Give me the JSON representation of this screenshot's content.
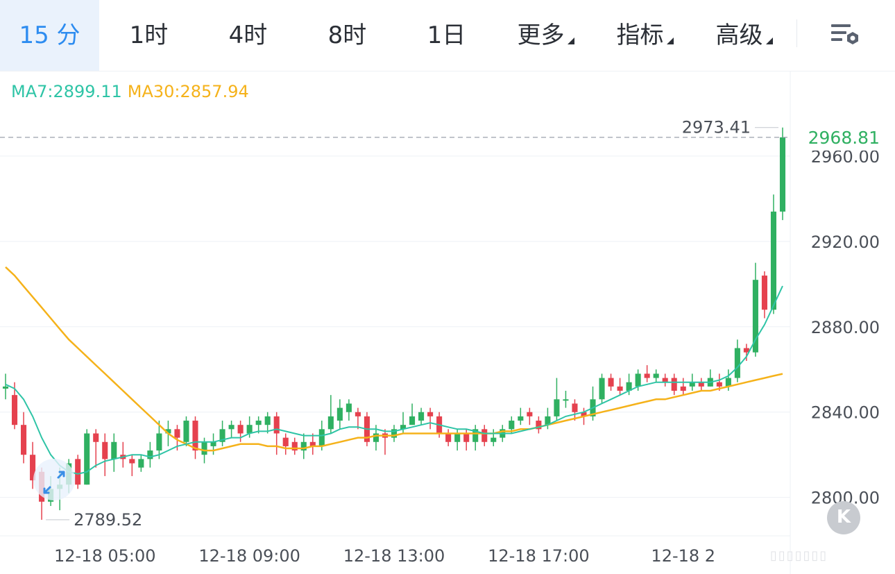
{
  "toolbar": {
    "tabs": [
      {
        "label": "15 分",
        "active": true
      },
      {
        "label": "1时"
      },
      {
        "label": "4时"
      },
      {
        "label": "8时"
      },
      {
        "label": "1日"
      },
      {
        "label": "更多",
        "dropdown": true
      },
      {
        "label": "指标",
        "dropdown": true
      },
      {
        "label": "高级",
        "dropdown": true
      }
    ],
    "settings_icon": "chart-settings-icon"
  },
  "legend": {
    "ma7": "MA7:2899.11",
    "ma30": "MA30:2857.94"
  },
  "colors": {
    "up": "#2fb061",
    "down": "#e5414e",
    "ma7": "#2ec4a6",
    "ma30": "#f5b21a",
    "grid": "#eef1f5",
    "active_tab": "#2d8cf0",
    "price_tag": "#2fb061"
  },
  "collapse_button": "K",
  "chart_data": {
    "type": "candlestick",
    "interval": "15 分",
    "ylim": [
      2782,
      3000
    ],
    "yticks": [
      2800,
      2840,
      2880,
      2920,
      2960
    ],
    "ytick_labels": [
      "2800.00",
      "2840.00",
      "2880.00",
      "2920.00",
      "2960.00"
    ],
    "xtick_labels": [
      "12-18 05:00",
      "12-18 09:00",
      "12-18 13:00",
      "12-18 17:00",
      "12-18 2"
    ],
    "xtick_index": [
      11,
      27,
      43,
      59,
      75
    ],
    "current_price": "2968.81",
    "high_marker": "2973.41",
    "low_marker": "2789.52",
    "candles": [
      [
        2851,
        2852,
        2858,
        2846
      ],
      [
        2848,
        2834,
        2854,
        2832
      ],
      [
        2834,
        2820,
        2840,
        2816
      ],
      [
        2820,
        2808,
        2826,
        2804
      ],
      [
        2812,
        2798,
        2814,
        2789.52
      ],
      [
        2798,
        2804,
        2810,
        2796
      ],
      [
        2804,
        2806,
        2814,
        2794
      ],
      [
        2806,
        2816,
        2818,
        2802
      ],
      [
        2818,
        2806,
        2820,
        2804
      ],
      [
        2806,
        2830,
        2832,
        2806
      ],
      [
        2830,
        2826,
        2832,
        2814
      ],
      [
        2826,
        2818,
        2830,
        2810
      ],
      [
        2818,
        2826,
        2830,
        2812
      ],
      [
        2820,
        2818,
        2826,
        2814
      ],
      [
        2818,
        2816,
        2820,
        2810
      ],
      [
        2814,
        2818,
        2820,
        2812
      ],
      [
        2818,
        2822,
        2826,
        2814
      ],
      [
        2822,
        2830,
        2836,
        2818
      ],
      [
        2830,
        2832,
        2836,
        2824
      ],
      [
        2832,
        2828,
        2834,
        2822
      ],
      [
        2826,
        2836,
        2838,
        2824
      ],
      [
        2836,
        2822,
        2838,
        2818
      ],
      [
        2820,
        2826,
        2828,
        2816
      ],
      [
        2824,
        2826,
        2830,
        2820
      ],
      [
        2826,
        2832,
        2836,
        2824
      ],
      [
        2832,
        2834,
        2836,
        2828
      ],
      [
        2834,
        2830,
        2836,
        2826
      ],
      [
        2830,
        2834,
        2838,
        2828
      ],
      [
        2834,
        2836,
        2838,
        2830
      ],
      [
        2834,
        2838,
        2840,
        2830
      ],
      [
        2838,
        2830,
        2840,
        2820
      ],
      [
        2828,
        2824,
        2830,
        2820
      ],
      [
        2826,
        2822,
        2828,
        2820
      ],
      [
        2822,
        2826,
        2830,
        2818
      ],
      [
        2826,
        2824,
        2830,
        2820
      ],
      [
        2824,
        2832,
        2836,
        2822
      ],
      [
        2832,
        2838,
        2848,
        2830
      ],
      [
        2836,
        2842,
        2846,
        2832
      ],
      [
        2840,
        2844,
        2846,
        2836
      ],
      [
        2840,
        2838,
        2842,
        2832
      ],
      [
        2838,
        2826,
        2840,
        2824
      ],
      [
        2826,
        2830,
        2834,
        2822
      ],
      [
        2830,
        2828,
        2832,
        2820
      ],
      [
        2828,
        2832,
        2834,
        2826
      ],
      [
        2832,
        2834,
        2840,
        2830
      ],
      [
        2834,
        2838,
        2844,
        2834
      ],
      [
        2836,
        2840,
        2842,
        2834
      ],
      [
        2840,
        2838,
        2842,
        2832
      ],
      [
        2838,
        2830,
        2840,
        2828
      ],
      [
        2830,
        2826,
        2832,
        2824
      ],
      [
        2826,
        2830,
        2832,
        2822
      ],
      [
        2830,
        2826,
        2832,
        2822
      ],
      [
        2826,
        2832,
        2834,
        2822
      ],
      [
        2832,
        2826,
        2834,
        2824
      ],
      [
        2826,
        2828,
        2832,
        2824
      ],
      [
        2828,
        2832,
        2834,
        2826
      ],
      [
        2832,
        2836,
        2838,
        2830
      ],
      [
        2836,
        2838,
        2842,
        2834
      ],
      [
        2840,
        2838,
        2842,
        2834
      ],
      [
        2836,
        2832,
        2838,
        2830
      ],
      [
        2834,
        2838,
        2842,
        2832
      ],
      [
        2838,
        2846,
        2856,
        2836
      ],
      [
        2846,
        2846,
        2850,
        2842
      ],
      [
        2844,
        2840,
        2846,
        2836
      ],
      [
        2840,
        2838,
        2842,
        2834
      ],
      [
        2838,
        2846,
        2852,
        2836
      ],
      [
        2846,
        2856,
        2858,
        2844
      ],
      [
        2856,
        2852,
        2858,
        2850
      ],
      [
        2852,
        2850,
        2856,
        2848
      ],
      [
        2850,
        2854,
        2858,
        2848
      ],
      [
        2852,
        2858,
        2860,
        2850
      ],
      [
        2858,
        2856,
        2862,
        2854
      ],
      [
        2856,
        2858,
        2860,
        2854
      ],
      [
        2856,
        2854,
        2858,
        2852
      ],
      [
        2856,
        2850,
        2858,
        2848
      ],
      [
        2852,
        2850,
        2856,
        2848
      ],
      [
        2852,
        2854,
        2858,
        2850
      ],
      [
        2854,
        2852,
        2856,
        2850
      ],
      [
        2852,
        2856,
        2860,
        2852
      ],
      [
        2854,
        2852,
        2858,
        2850
      ],
      [
        2852,
        2856,
        2860,
        2850
      ],
      [
        2856,
        2870,
        2874,
        2854
      ],
      [
        2870,
        2868,
        2872,
        2864
      ],
      [
        2868,
        2902,
        2910,
        2866
      ],
      [
        2904,
        2888,
        2906,
        2884
      ],
      [
        2888,
        2934,
        2942,
        2886
      ],
      [
        2934,
        2968.81,
        2973.41,
        2930
      ]
    ],
    "ma7": [
      2853,
      2851,
      2846,
      2838,
      2828,
      2820,
      2815,
      2812,
      2811,
      2812,
      2815,
      2817,
      2818,
      2819,
      2820,
      2820,
      2819,
      2820,
      2822,
      2824,
      2825,
      2826,
      2826,
      2826,
      2827,
      2828,
      2828,
      2830,
      2831,
      2831,
      2832,
      2831,
      2830,
      2829,
      2829,
      2829,
      2830,
      2832,
      2833,
      2833,
      2832,
      2832,
      2831,
      2831,
      2832,
      2833,
      2834,
      2835,
      2834,
      2833,
      2832,
      2832,
      2831,
      2830,
      2830,
      2830,
      2830,
      2831,
      2832,
      2833,
      2834,
      2836,
      2838,
      2839,
      2840,
      2842,
      2844,
      2846,
      2848,
      2850,
      2852,
      2853,
      2854,
      2854,
      2854,
      2854,
      2854,
      2854,
      2854,
      2855,
      2857,
      2861,
      2866,
      2874,
      2881,
      2890,
      2899.11
    ],
    "ma30": [
      2908,
      2904,
      2899,
      2894,
      2889,
      2884,
      2879,
      2874,
      2870,
      2866,
      2862,
      2858,
      2854,
      2850,
      2846,
      2842,
      2838,
      2834,
      2830,
      2827,
      2825,
      2823,
      2822,
      2822,
      2823,
      2824,
      2825,
      2825,
      2825,
      2824,
      2824,
      2823,
      2823,
      2823,
      2824,
      2824,
      2825,
      2826,
      2827,
      2828,
      2828,
      2829,
      2829,
      2829,
      2830,
      2830,
      2830,
      2830,
      2830,
      2830,
      2830,
      2830,
      2830,
      2830,
      2830,
      2831,
      2831,
      2832,
      2832,
      2833,
      2834,
      2835,
      2836,
      2837,
      2838,
      2839,
      2840,
      2841,
      2842,
      2843,
      2844,
      2845,
      2846,
      2846,
      2847,
      2848,
      2849,
      2850,
      2850,
      2851,
      2852,
      2853,
      2854,
      2855,
      2856,
      2857,
      2857.94
    ]
  }
}
